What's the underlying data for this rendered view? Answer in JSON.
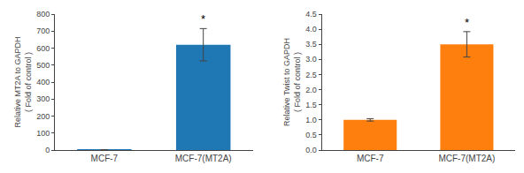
{
  "chart_data": [
    {
      "type": "bar",
      "ylabel": "Relative MT2A to GAPDH\n( Fold of control )",
      "categories": [
        "MCF-7",
        "MCF-7(MT2A)"
      ],
      "values": [
        1,
        620
      ],
      "errors": [
        0.5,
        95
      ],
      "ylim": [
        0,
        800
      ],
      "yticks": [
        0,
        100,
        200,
        300,
        400,
        500,
        600,
        700,
        800
      ],
      "grid": false,
      "annotations": [
        {
          "category": "MCF-7(MT2A)",
          "text": "*"
        }
      ]
    },
    {
      "type": "bar",
      "ylabel": "Relative Twist to GAPDH\n( Fold of control )",
      "categories": [
        "MCF-7",
        "MCF-7(MT2A)"
      ],
      "values": [
        1.0,
        3.5
      ],
      "errors": [
        0.04,
        0.42
      ],
      "ylim": [
        0,
        4.5
      ],
      "yticks": [
        {
          "value": 0,
          "label": "0.0"
        },
        0.5,
        {
          "value": 1,
          "label": "1.0"
        },
        1.5,
        {
          "value": 2,
          "label": "2.0"
        },
        2.5,
        {
          "value": 3,
          "label": "3.0"
        },
        3.5,
        {
          "value": 4,
          "label": "4.0"
        },
        4.5
      ],
      "grid": false,
      "annotations": [
        {
          "category": "MCF-7(MT2A)",
          "text": "*"
        }
      ]
    }
  ]
}
